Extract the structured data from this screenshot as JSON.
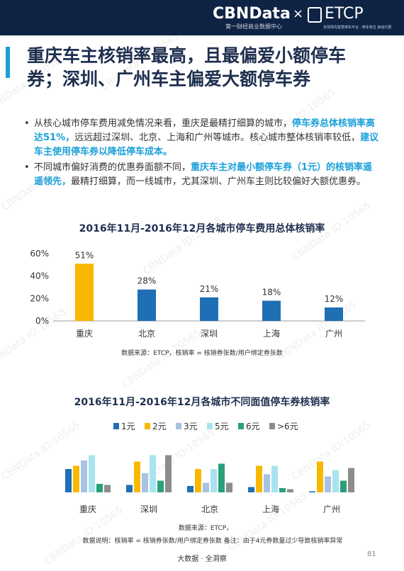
{
  "header": {
    "brand": "CBNData",
    "cross": "×",
    "partner": "ETCP",
    "brand_subtitle": "第一财经商业数据中心",
    "partner_subtitle": "全球领先智慧停车平台 · 停车有位 启动付费"
  },
  "watermark": "CBNData ID:10565",
  "title": "重庆车主核销率最高，且最偏爱小额停车券；深圳、广州车主偏爱大额停车券",
  "bullets": [
    [
      {
        "text": "从核心城市停车费用减免情况来看，重庆是最精打细算的城市，",
        "highlight": false
      },
      {
        "text": "停车券总体核销率高达51%，",
        "highlight": true
      },
      {
        "text": "远远超过深圳、北京、上海和广州等城市。核心城市整体核销率较低，",
        "highlight": false
      },
      {
        "text": "建议车主使用停车券以降低停车成本。",
        "highlight": true
      }
    ],
    [
      {
        "text": "不同城市偏好消费的优惠券面额不同，",
        "highlight": false
      },
      {
        "text": "重庆车主对最小额停车券（1元）的核销率遥遥领先，",
        "highlight": true
      },
      {
        "text": "最精打细算，而一线城市，尤其深圳、广州车主则比较偏好大额优惠券。",
        "highlight": false
      }
    ]
  ],
  "chart_data": [
    {
      "type": "bar",
      "title": "2016年11月-2016年12月各城市停车费用总体核销率",
      "categories": [
        "重庆",
        "北京",
        "深圳",
        "上海",
        "广州"
      ],
      "values": [
        51,
        28,
        21,
        18,
        12
      ],
      "value_labels": [
        "51%",
        "28%",
        "21%",
        "18%",
        "12%"
      ],
      "colors": [
        "#f9b800",
        "#1f6fb5",
        "#1f6fb5",
        "#1f6fb5",
        "#1f6fb5"
      ],
      "ylim": [
        0,
        60
      ],
      "yticks": [
        {
          "value": 0,
          "label": "0%"
        },
        {
          "value": 20,
          "label": "20%"
        },
        {
          "value": 40,
          "label": "40%"
        },
        {
          "value": 60,
          "label": "60%"
        }
      ],
      "notes": [
        "数据来源：ETCP，核销率 = 核销券张数/用户绑定券张数"
      ]
    },
    {
      "type": "grouped_bar",
      "title": "2016年11月-2016年12月各城市不同面值停车券核销率",
      "categories": [
        "重庆",
        "深圳",
        "北京",
        "上海",
        "广州"
      ],
      "series": [
        {
          "name": "1元",
          "color": "#1f6fb5",
          "values": [
            22,
            7,
            6,
            5,
            1
          ]
        },
        {
          "name": "2元",
          "color": "#f9b800",
          "values": [
            25,
            29,
            22,
            25,
            29
          ]
        },
        {
          "name": "3元",
          "color": "#a6c3e3",
          "values": [
            30,
            18,
            9,
            17,
            15
          ]
        },
        {
          "name": "5元",
          "color": "#a8e3ef",
          "values": [
            35,
            35,
            22,
            25,
            21
          ]
        },
        {
          "name": "6元",
          "color": "#2aa07a",
          "values": [
            8,
            11,
            27,
            4,
            11
          ]
        },
        {
          "name": ">6元",
          "color": "#8c8c8c",
          "values": [
            7,
            35,
            9,
            3,
            23
          ]
        }
      ],
      "legend": "top",
      "notes": [
        "数据来源：ETCP，",
        "数据说明：核销率 = 核销券张数/用户绑定券张数 备注：由于4元券数量过少导致核销率异常"
      ]
    }
  ],
  "footer": {
    "tagline": "大数据 · 全洞察",
    "page": "81"
  }
}
